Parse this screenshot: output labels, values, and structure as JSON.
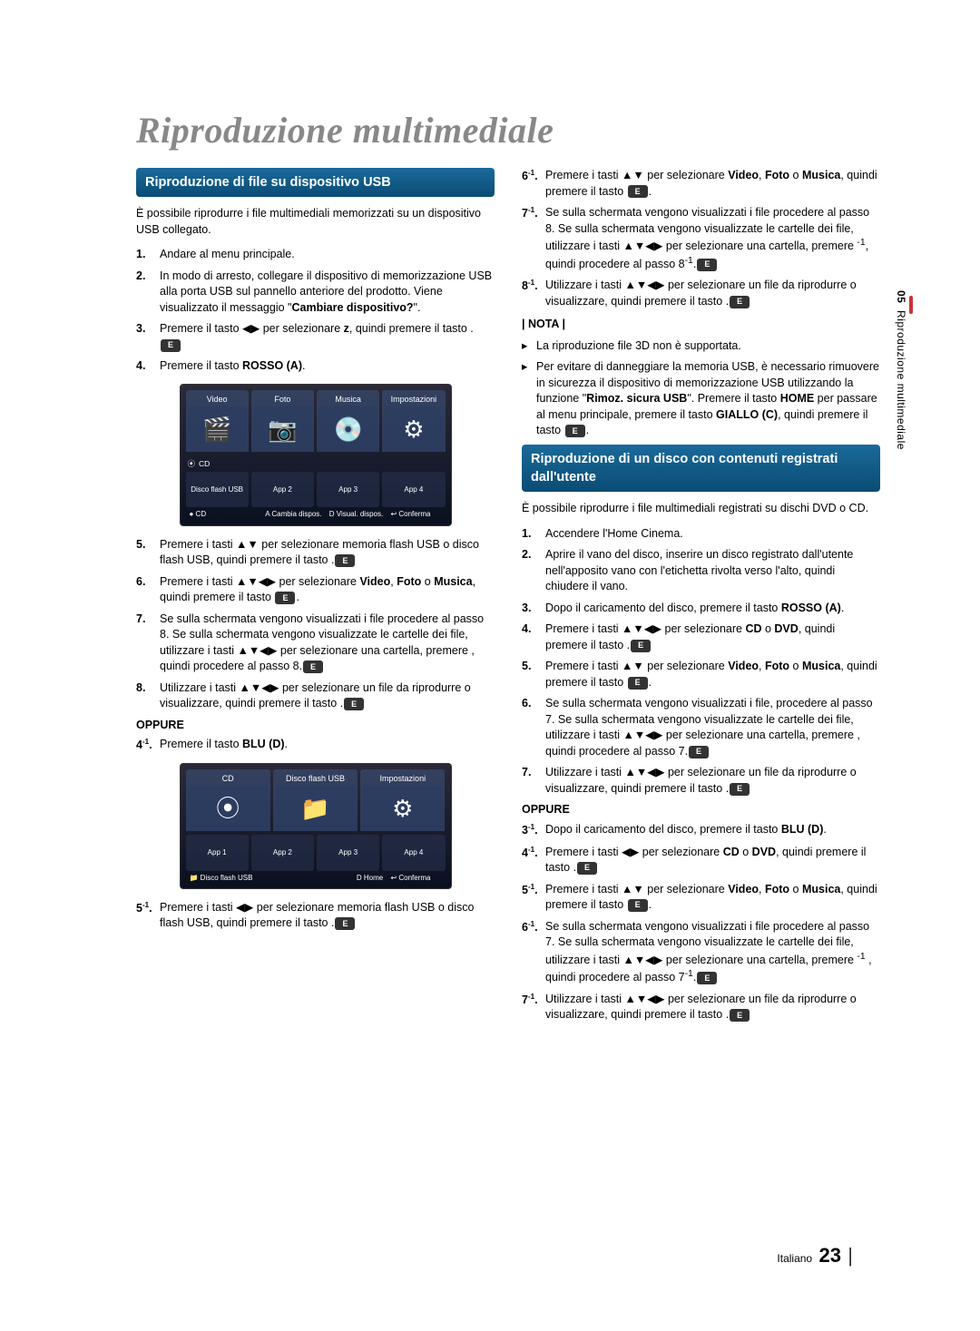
{
  "page_title": "Riproduzione multimediale",
  "side_tab": {
    "section_num": "05",
    "section_name": "Riproduzione multimediale"
  },
  "footer": {
    "lang": "Italiano",
    "page_num": "23"
  },
  "left": {
    "banner": "Riproduzione di file su dispositivo USB",
    "intro": "È possibile riprodurre i file multimediali memorizzati su un dispositivo USB collegato.",
    "steps": [
      {
        "n": "1.",
        "t": "Andare al menu principale."
      },
      {
        "n": "2.",
        "t": "In modo di arresto, collegare il dispositivo di memorizzazione USB alla porta USB sul pannello anteriore del prodotto. Viene visualizzato il messaggio \"",
        "b": "Cambiare dispositivo?",
        "t2": "\"."
      },
      {
        "n": "3.",
        "t": "Premere il tasto ◀▶ per selezionare ",
        "b": "z",
        "t2": ", quindi premere il tasto ",
        "icon": true,
        "t3": "."
      },
      {
        "n": "4.",
        "t": "Premere il tasto ",
        "b": "ROSSO (A)",
        "t2": "."
      }
    ],
    "shot1": {
      "tiles": [
        {
          "label": "Video",
          "icon": "🎬"
        },
        {
          "label": "Foto",
          "icon": "📷"
        },
        {
          "label": "Musica",
          "icon": "💿"
        },
        {
          "label": "Impostazioni",
          "icon": "⚙"
        }
      ],
      "cd_row": {
        "icon": "⦿",
        "label": "CD"
      },
      "apps_row": [
        {
          "label": "Disco flash USB"
        },
        {
          "label": "App 2"
        },
        {
          "label": "App 3"
        },
        {
          "label": "App 4"
        }
      ],
      "footer": {
        "left": "● CD",
        "a": "A Cambia dispos.",
        "d": "D Visual. dispos.",
        "e": "↩ Conferma"
      }
    },
    "steps2": [
      {
        "n": "5.",
        "t": "Premere i tasti ▲▼ per selezionare memoria flash USB o disco flash USB, quindi premere il tasto ",
        "icon": true,
        "t2": "."
      },
      {
        "n": "6.",
        "t": "Premere i tasti ▲▼◀▶ per selezionare ",
        "b": "Video",
        "t2": ", ",
        "b2": "Foto",
        "t3": " o ",
        "b3": "Musica",
        "t4": ", quindi premere il tasto ",
        "icon": true,
        "t5": "."
      },
      {
        "n": "7.",
        "t": "Se sulla schermata vengono visualizzati i file procedere al passo 8. Se sulla schermata vengono visualizzate le cartelle dei file, utilizzare i tasti ▲▼◀▶ per selezionare una cartella, premere ",
        "icon": true,
        "t2": ", quindi procedere al passo 8."
      },
      {
        "n": "8.",
        "t": "Utilizzare i tasti ▲▼◀▶ per selezionare un file da riprodurre o visualizzare, quindi premere il tasto ",
        "icon": true,
        "t2": "."
      }
    ],
    "oppure": "OPPURE",
    "step_4_1": {
      "n": "4",
      "sup": "-1",
      "dot": ".",
      "t": "Premere il tasto ",
      "b": "BLU (D)",
      "t2": "."
    },
    "shot2": {
      "tiles": [
        {
          "label": "CD",
          "icon": "⦿"
        },
        {
          "label": "Disco flash USB",
          "icon": "📁"
        },
        {
          "label": "Impostazioni",
          "icon": "⚙"
        }
      ],
      "apps_row": [
        {
          "label": "App 1"
        },
        {
          "label": "App 2"
        },
        {
          "label": "App 3"
        },
        {
          "label": "App 4"
        }
      ],
      "footer": {
        "left": "📁 Disco flash USB",
        "d": "D Home",
        "e": "↩ Conferma"
      }
    },
    "step_5_1": {
      "n": "5",
      "sup": "-1",
      "dot": ".",
      "t": "Premere i tasti ◀▶ per selezionare memoria flash USB o disco flash USB, quindi premere il tasto ",
      "icon": true,
      "t2": "."
    }
  },
  "right": {
    "steps_top": [
      {
        "n": "6",
        "sup": "-1",
        "dot": ".",
        "t": "Premere i tasti ▲▼ per selezionare ",
        "b": "Video",
        "t2": ", ",
        "b2": "Foto",
        "t3": " o ",
        "b3": "Musica",
        "t4": ", quindi premere il tasto ",
        "icon": true,
        "t5": "."
      },
      {
        "n": "7",
        "sup": "-1",
        "dot": ".",
        "t": "Se sulla schermata vengono visualizzati i file procedere al passo 8",
        "sup2": "-1",
        "t2": ". Se sulla schermata vengono visualizzate le cartelle dei file, utilizzare i tasti ▲▼◀▶ per selezionare una cartella, premere ",
        "icon": true,
        "t3": ", quindi procedere al passo 8",
        "sup3": "-1",
        "t4": "."
      },
      {
        "n": "8",
        "sup": "-1",
        "dot": ".",
        "t": "Utilizzare i tasti ▲▼◀▶ per selezionare un file da riprodurre o visualizzare, quindi premere il tasto ",
        "icon": true,
        "t2": "."
      }
    ],
    "nota_heading": "| NOTA |",
    "notes": [
      {
        "t": "La riproduzione file 3D non è supportata."
      },
      {
        "t": "Per evitare di danneggiare la memoria USB, è necessario rimuovere in sicurezza il dispositivo di memorizzazione USB utilizzando la funzione \"",
        "b": "Rimoz. sicura USB",
        "t2": "\". Premere il tasto ",
        "b2": "HOME",
        "t3": " per passare al menu principale, premere il tasto ",
        "b3": "GIALLO (C)",
        "t4": ", quindi premere il tasto ",
        "icon": true,
        "t5": "."
      }
    ],
    "banner": "Riproduzione di un disco con contenuti registrati dall'utente",
    "intro": "È possibile riprodurre i file multimediali registrati su dischi DVD o CD.",
    "steps": [
      {
        "n": "1.",
        "t": "Accendere l'Home Cinema."
      },
      {
        "n": "2.",
        "t": "Aprire il vano del disco, inserire un disco registrato dall'utente nell'apposito vano con l'etichetta rivolta verso l'alto, quindi chiudere il vano."
      },
      {
        "n": "3.",
        "t": "Dopo il caricamento del disco, premere il tasto ",
        "b": "ROSSO (A)",
        "t2": "."
      },
      {
        "n": "4.",
        "t": "Premere i tasti ▲▼◀▶ per selezionare ",
        "b": "CD",
        "t2": " o ",
        "b2": "DVD",
        "t3": ", quindi premere il tasto ",
        "icon": true,
        "t4": "."
      },
      {
        "n": "5.",
        "t": "Premere i tasti ▲▼ per selezionare ",
        "b": "Video",
        "t2": ", ",
        "b2": "Foto",
        "t3": " o ",
        "b3": "Musica",
        "t4": ", quindi premere il tasto ",
        "icon": true,
        "t5": "."
      },
      {
        "n": "6.",
        "t": "Se sulla schermata vengono visualizzati i file, procedere al passo 7. Se sulla schermata vengono visualizzate le cartelle dei file, utilizzare i tasti ▲▼◀▶ per selezionare una cartella, premere ",
        "icon": true,
        "t2": ", quindi procedere al passo 7."
      },
      {
        "n": "7.",
        "t": "Utilizzare i tasti ▲▼◀▶ per selezionare un file da riprodurre o visualizzare, quindi premere il tasto ",
        "icon": true,
        "t2": "."
      }
    ],
    "oppure": "OPPURE",
    "steps2": [
      {
        "n": "3",
        "sup": "-1",
        "dot": ".",
        "t": "Dopo il caricamento del disco, premere il tasto ",
        "b": "BLU (D)",
        "t2": "."
      },
      {
        "n": "4",
        "sup": "-1",
        "dot": ".",
        "t": "Premere i tasti ◀▶ per selezionare ",
        "b": "CD",
        "t2": " o ",
        "b2": "DVD",
        "t3": ", quindi premere il tasto ",
        "icon": true,
        "t4": "."
      },
      {
        "n": "5",
        "sup": "-1",
        "dot": ".",
        "t": "Premere i tasti ▲▼ per selezionare ",
        "b": "Video",
        "t2": ", ",
        "b2": "Foto",
        "t3": " o ",
        "b3": "Musica",
        "t4": ", quindi premere il tasto ",
        "icon": true,
        "t5": "."
      },
      {
        "n": "6",
        "sup": "-1",
        "dot": ".",
        "t": "Se sulla schermata vengono visualizzati i file procedere al passo 7",
        "sup2": "-1",
        "t2": ". Se sulla schermata vengono visualizzate le cartelle dei file, utilizzare i tasti ▲▼◀▶ per selezionare una cartella, premere ",
        "icon": true,
        "t3": " , quindi procedere al passo 7",
        "sup3": "-1",
        "t4": "."
      },
      {
        "n": "7",
        "sup": "-1",
        "dot": ".",
        "t": "Utilizzare i tasti ▲▼◀▶ per selezionare un file da riprodurre o visualizzare, quindi premere il tasto ",
        "icon": true,
        "t2": "."
      }
    ]
  }
}
